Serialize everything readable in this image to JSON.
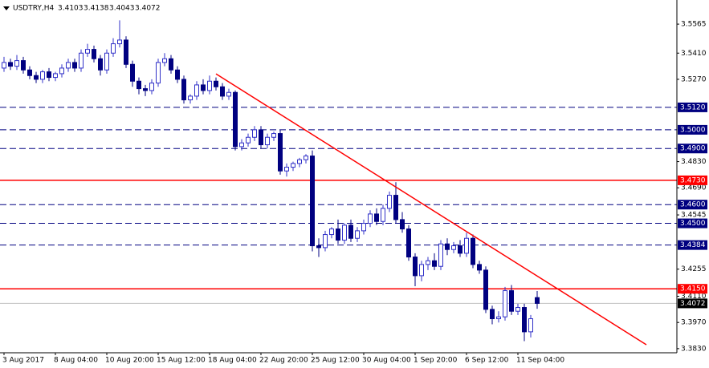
{
  "chart_data": {
    "type": "candlestick",
    "title": "USDTRY,H4",
    "header_values": [
      3.4103,
      3.4138,
      3.4043,
      3.4072
    ],
    "categories": [
      "3 Aug 2017",
      null,
      null,
      null,
      null,
      null,
      null,
      null,
      "8 Aug 04:00",
      null,
      null,
      null,
      null,
      null,
      null,
      null,
      "10 Aug 20:00",
      null,
      null,
      null,
      null,
      null,
      null,
      null,
      "15 Aug 12:00",
      null,
      null,
      null,
      null,
      null,
      null,
      null,
      "18 Aug 04:00",
      null,
      null,
      null,
      null,
      null,
      null,
      null,
      "22 Aug 20:00",
      null,
      null,
      null,
      null,
      null,
      null,
      null,
      "25 Aug 12:00",
      null,
      null,
      null,
      null,
      null,
      null,
      null,
      "30 Aug 04:00",
      null,
      null,
      null,
      null,
      null,
      null,
      null,
      "1 Sep 20:00",
      null,
      null,
      null,
      null,
      null,
      null,
      null,
      "6 Sep 12:00",
      null,
      null,
      null,
      null,
      null,
      null,
      null,
      "11 Sep 04:00",
      null,
      null,
      null
    ],
    "open": [
      3.533,
      3.536,
      3.534,
      3.537,
      3.532,
      3.529,
      3.527,
      3.531,
      3.528,
      3.53,
      3.533,
      3.536,
      3.533,
      3.541,
      3.543,
      3.538,
      3.532,
      3.541,
      3.546,
      3.548,
      3.535,
      3.526,
      3.522,
      3.521,
      3.525,
      3.536,
      3.538,
      3.532,
      3.527,
      3.516,
      3.518,
      3.524,
      3.521,
      3.526,
      3.523,
      3.518,
      3.52,
      3.491,
      3.493,
      3.496,
      3.5,
      3.492,
      3.496,
      3.498,
      3.478,
      3.48,
      3.482,
      3.484,
      3.486,
      3.438,
      3.437,
      3.444,
      3.447,
      3.441,
      3.449,
      3.442,
      3.446,
      3.45,
      3.455,
      3.451,
      3.458,
      3.465,
      3.452,
      3.447,
      3.432,
      3.422,
      3.428,
      3.43,
      3.427,
      3.439,
      3.436,
      3.438,
      3.434,
      3.442,
      3.428,
      3.425,
      3.404,
      3.399,
      3.4,
      3.414,
      3.403,
      3.405,
      3.392,
      3.4103
    ],
    "high": [
      3.539,
      3.538,
      3.54,
      3.539,
      3.534,
      3.531,
      3.532,
      3.533,
      3.531,
      3.535,
      3.538,
      3.538,
      3.543,
      3.546,
      3.545,
      3.54,
      3.543,
      3.549,
      3.5585,
      3.55,
      3.537,
      3.528,
      3.524,
      3.527,
      3.538,
      3.541,
      3.54,
      3.534,
      3.529,
      3.519,
      3.526,
      3.527,
      3.529,
      3.528,
      3.525,
      3.522,
      3.521,
      3.495,
      3.498,
      3.502,
      3.502,
      3.498,
      3.499,
      3.5,
      3.482,
      3.483,
      3.485,
      3.487,
      3.489,
      3.442,
      3.446,
      3.448,
      3.452,
      3.45,
      3.452,
      3.448,
      3.452,
      3.457,
      3.458,
      3.46,
      3.467,
      3.472,
      3.456,
      3.449,
      3.434,
      3.43,
      3.432,
      3.434,
      3.441,
      3.442,
      3.44,
      3.441,
      3.445,
      3.444,
      3.43,
      3.427,
      3.406,
      3.403,
      3.416,
      3.417,
      3.407,
      3.407,
      3.401,
      3.4138
    ],
    "low": [
      3.531,
      3.532,
      3.532,
      3.53,
      3.527,
      3.525,
      3.525,
      3.526,
      3.526,
      3.528,
      3.531,
      3.531,
      3.531,
      3.539,
      3.536,
      3.529,
      3.53,
      3.539,
      3.544,
      3.533,
      3.523,
      3.519,
      3.518,
      3.519,
      3.523,
      3.534,
      3.53,
      3.525,
      3.514,
      3.514,
      3.516,
      3.519,
      3.519,
      3.521,
      3.516,
      3.516,
      3.489,
      3.489,
      3.491,
      3.494,
      3.49,
      3.49,
      3.494,
      3.476,
      3.475,
      3.478,
      3.48,
      3.482,
      3.435,
      3.432,
      3.435,
      3.442,
      3.439,
      3.439,
      3.44,
      3.44,
      3.444,
      3.448,
      3.449,
      3.449,
      3.456,
      3.45,
      3.445,
      3.43,
      3.4164,
      3.419,
      3.425,
      3.425,
      3.425,
      3.433,
      3.434,
      3.432,
      3.432,
      3.426,
      3.423,
      3.402,
      3.396,
      3.397,
      3.398,
      3.401,
      3.401,
      3.387,
      3.389,
      3.4043
    ],
    "close": [
      3.536,
      3.534,
      3.537,
      3.532,
      3.529,
      3.527,
      3.531,
      3.528,
      3.53,
      3.533,
      3.536,
      3.533,
      3.541,
      3.543,
      3.538,
      3.532,
      3.541,
      3.546,
      3.548,
      3.535,
      3.526,
      3.522,
      3.521,
      3.525,
      3.536,
      3.538,
      3.532,
      3.527,
      3.516,
      3.518,
      3.524,
      3.521,
      3.526,
      3.523,
      3.518,
      3.52,
      3.491,
      3.493,
      3.496,
      3.5,
      3.492,
      3.496,
      3.498,
      3.478,
      3.48,
      3.482,
      3.484,
      3.486,
      3.438,
      3.437,
      3.444,
      3.447,
      3.441,
      3.449,
      3.442,
      3.446,
      3.45,
      3.455,
      3.451,
      3.458,
      3.465,
      3.452,
      3.447,
      3.432,
      3.422,
      3.428,
      3.43,
      3.427,
      3.439,
      3.436,
      3.438,
      3.434,
      3.442,
      3.428,
      3.425,
      3.404,
      3.399,
      3.4,
      3.414,
      3.403,
      3.405,
      3.392,
      3.399,
      3.4072
    ],
    "up_color": "#3030c8",
    "down_color": "#000080",
    "ylim": [
      3.3808,
      3.5694
    ],
    "yticks": [
      {
        "value": 3.5565,
        "label": "3.5565"
      },
      {
        "value": 3.541,
        "label": "3.5410"
      },
      {
        "value": 3.527,
        "label": "3.5270"
      },
      {
        "value": 3.483,
        "label": "3.4830"
      },
      {
        "value": 3.469,
        "label": "3.4690"
      },
      {
        "value": 3.4545,
        "label": "3.4545"
      },
      {
        "value": 3.4255,
        "label": "3.4255"
      },
      {
        "value": 3.411,
        "label": "3.4110"
      },
      {
        "value": 3.397,
        "label": "3.3970"
      },
      {
        "value": 3.383,
        "label": "3.3830"
      }
    ],
    "levels": [
      {
        "value": 3.512,
        "label": "3.5120",
        "style": "dashed",
        "color": "#000080"
      },
      {
        "value": 3.5,
        "label": "3.5000",
        "style": "dashed",
        "color": "#000080"
      },
      {
        "value": 3.49,
        "label": "3.4900",
        "style": "dashed",
        "color": "#000080"
      },
      {
        "value": 3.473,
        "label": "3.4730",
        "style": "solid",
        "color": "#ff0000"
      },
      {
        "value": 3.46,
        "label": "3.4600",
        "style": "dashed",
        "color": "#000080"
      },
      {
        "value": 3.45,
        "label": "3.4500",
        "style": "dashed",
        "color": "#000080"
      },
      {
        "value": 3.4384,
        "label": "3.4384",
        "style": "dashed",
        "color": "#000080"
      },
      {
        "value": 3.415,
        "label": "3.4150",
        "style": "solid",
        "color": "#ff0000"
      },
      {
        "value": 3.4072,
        "label": "3.4072",
        "style": "current",
        "color": "#c0c0c0"
      }
    ],
    "trendline": {
      "x": [
        33,
        100
      ],
      "y": [
        3.5299,
        3.3851
      ],
      "color": "#ff0000"
    }
  }
}
